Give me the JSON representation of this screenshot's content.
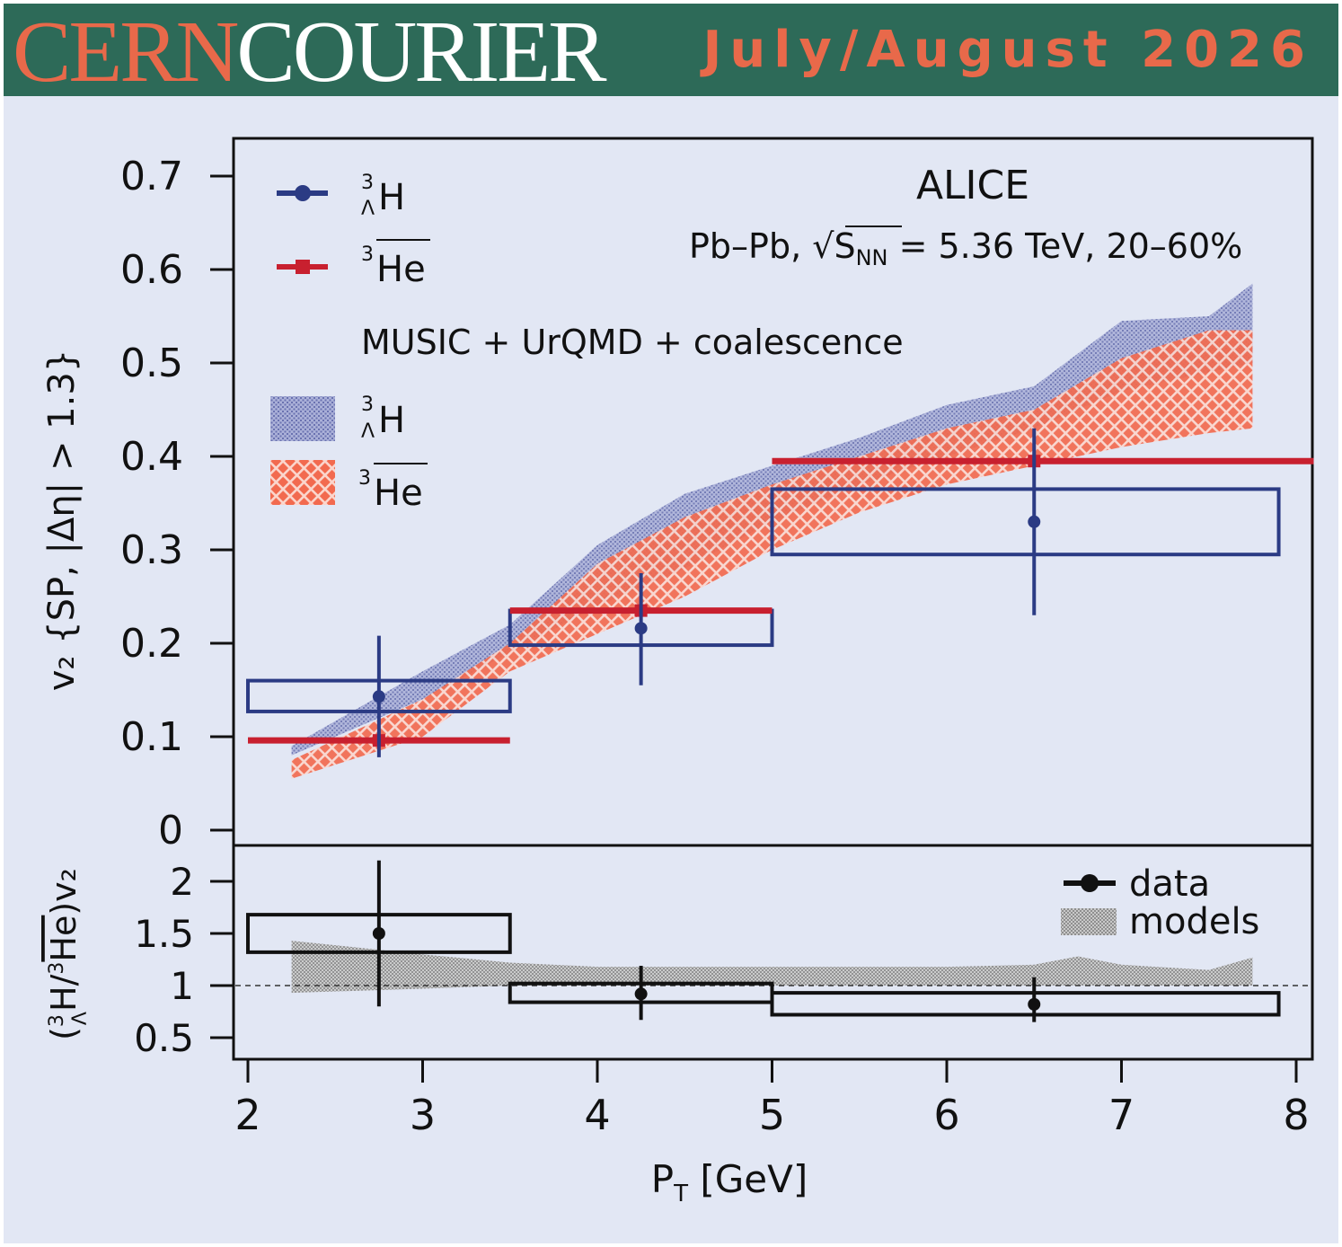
{
  "banner": {
    "brand_part1": "CERN",
    "brand_part2": "COURIER",
    "issue": "July/August 2026"
  },
  "colors": {
    "banner_bg": "#2d6a58",
    "brand_orange": "#e8694a",
    "panel_bg": "#e2e7f4",
    "hypertriton": "#2b3b84",
    "antihelium": "#c8202f",
    "model_hypertriton": "#8b93c6",
    "model_antihelium": "#f26a4f",
    "ratio_model": "#9a9a9a"
  },
  "chart_data": [
    {
      "type": "scatter",
      "experiment": "ALICE",
      "system": "Pb–Pb, ",
      "energy_sym": "S",
      "energy_sub": "NN",
      "energy_rest": " = 5.36 TeV, 20–60%",
      "ylabel": "v₂ {SP, |Δη| > 1.3}",
      "ylim": [
        0,
        0.7
      ],
      "yticks": [
        "0",
        "0.1",
        "0.2",
        "0.3",
        "0.4",
        "0.5",
        "0.6",
        "0.7"
      ],
      "xlim": [
        2,
        8
      ],
      "legend_data": [
        {
          "sup": "3",
          "sub": "Λ",
          "label": "H",
          "color": "#2b3b84",
          "overline": false
        },
        {
          "sup": "3",
          "sub": "",
          "label": "He",
          "color": "#c8202f",
          "overline": true
        }
      ],
      "model_title": "MUSIC + UrQMD + coalescence",
      "legend_models": [
        {
          "sup": "3",
          "sub": "Λ",
          "label": "H",
          "overline": false
        },
        {
          "sup": "3",
          "sub": "",
          "label": "He",
          "overline": true
        }
      ],
      "series": [
        {
          "name": "hypertriton",
          "color": "#2b3b84",
          "points": [
            {
              "x": 2.75,
              "y": 0.143,
              "xlo": 2.0,
              "xhi": 3.5,
              "ylo": 0.127,
              "yhi": 0.16,
              "elo": 0.078,
              "ehi": 0.208
            },
            {
              "x": 4.25,
              "y": 0.216,
              "xlo": 3.5,
              "xhi": 5.0,
              "ylo": 0.198,
              "yhi": 0.235,
              "elo": 0.155,
              "ehi": 0.275
            },
            {
              "x": 6.5,
              "y": 0.33,
              "xlo": 5.0,
              "xhi": 7.9,
              "ylo": 0.295,
              "yhi": 0.365,
              "elo": 0.23,
              "ehi": 0.43
            }
          ]
        },
        {
          "name": "antihelium3",
          "color": "#c8202f",
          "points": [
            {
              "x": 2.75,
              "y": 0.096,
              "xlo": 2.0,
              "xhi": 3.5
            },
            {
              "x": 4.25,
              "y": 0.235,
              "xlo": 3.5,
              "xhi": 5.0
            },
            {
              "x": 6.5,
              "y": 0.395,
              "xlo": 5.0,
              "xhi": 8.1
            }
          ]
        }
      ],
      "model_bands": [
        {
          "name": "hypertriton model",
          "color": "#8b93c6",
          "x": [
            2.25,
            3.0,
            3.5,
            4.0,
            4.5,
            5.0,
            5.5,
            6.0,
            6.5,
            7.0,
            7.5,
            7.75
          ],
          "lo": [
            0.08,
            0.14,
            0.19,
            0.24,
            0.28,
            0.33,
            0.37,
            0.4,
            0.43,
            0.47,
            0.49,
            0.5
          ],
          "hi": [
            0.09,
            0.17,
            0.22,
            0.305,
            0.36,
            0.39,
            0.42,
            0.455,
            0.475,
            0.545,
            0.55,
            0.585
          ]
        },
        {
          "name": "antihelium3 model",
          "color": "#f26a4f",
          "x": [
            2.25,
            3.0,
            3.5,
            4.0,
            4.5,
            5.0,
            5.5,
            6.0,
            6.5,
            7.0,
            7.5,
            7.75
          ],
          "lo": [
            0.055,
            0.1,
            0.17,
            0.21,
            0.25,
            0.3,
            0.34,
            0.37,
            0.39,
            0.41,
            0.425,
            0.43
          ],
          "hi": [
            0.075,
            0.14,
            0.2,
            0.285,
            0.335,
            0.37,
            0.4,
            0.43,
            0.45,
            0.505,
            0.535,
            0.535
          ]
        }
      ]
    },
    {
      "type": "scatter",
      "ylabel_sup": "3",
      "ylabel_sub": "Λ",
      "ylabel_a": "(",
      "ylabel_b": "H/",
      "ylabel_c": "3",
      "ylabel_d": "He",
      "ylabel_e": ")v₂",
      "ylim": [
        0.25,
        2.35
      ],
      "yticks": [
        {
          "v": 0.5,
          "label": "0.5"
        },
        {
          "v": 1,
          "label": "1"
        },
        {
          "v": 1.5,
          "label": "1.5"
        },
        {
          "v": 2,
          "label": "2"
        }
      ],
      "reference_line": 1,
      "xlabel": "P",
      "xlabel_sub": "T",
      "xlabel_rest": " [GeV]",
      "xlim": [
        2,
        8
      ],
      "xticks": [
        "2",
        "3",
        "4",
        "5",
        "6",
        "7",
        "8"
      ],
      "legend": [
        {
          "label": "data",
          "kind": "marker"
        },
        {
          "label": "models",
          "kind": "band"
        }
      ],
      "series": [
        {
          "name": "data",
          "points": [
            {
              "x": 2.75,
              "y": 1.5,
              "xlo": 2.0,
              "xhi": 3.5,
              "ylo": 1.32,
              "yhi": 1.68,
              "elo": 0.8,
              "ehi": 2.2
            },
            {
              "x": 4.25,
              "y": 0.92,
              "xlo": 3.5,
              "xhi": 5.0,
              "ylo": 0.84,
              "yhi": 1.02,
              "elo": 0.67,
              "ehi": 1.19
            },
            {
              "x": 6.5,
              "y": 0.82,
              "xlo": 5.0,
              "xhi": 7.9,
              "ylo": 0.72,
              "yhi": 0.93,
              "elo": 0.65,
              "ehi": 1.08
            }
          ]
        }
      ],
      "model_band": {
        "name": "models",
        "x": [
          2.25,
          3.0,
          3.5,
          4.0,
          4.5,
          5.0,
          5.5,
          6.0,
          6.5,
          6.75,
          7.0,
          7.5,
          7.75
        ],
        "lo": [
          0.93,
          0.97,
          1.0,
          1.0,
          1.0,
          1.0,
          1.0,
          1.0,
          1.0,
          1.0,
          1.0,
          1.0,
          1.0
        ],
        "hi": [
          1.43,
          1.3,
          1.22,
          1.18,
          1.18,
          1.18,
          1.18,
          1.18,
          1.2,
          1.28,
          1.2,
          1.15,
          1.27
        ]
      }
    }
  ]
}
